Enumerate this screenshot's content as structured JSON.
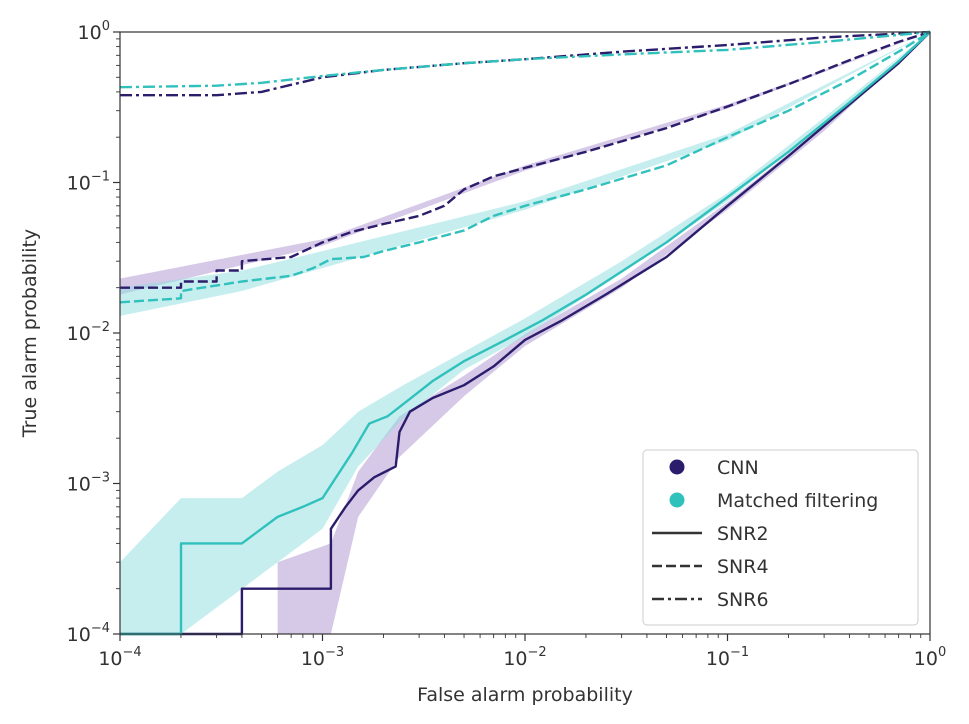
{
  "chart_data": {
    "type": "line",
    "xlabel": "False alarm probability",
    "ylabel": "True alarm probability",
    "xscale": "log",
    "yscale": "log",
    "xlim": [
      0.0001,
      1
    ],
    "ylim": [
      0.0001,
      1
    ],
    "xticks": [
      {
        "value": 0.0001,
        "base": "10",
        "exp": "−4"
      },
      {
        "value": 0.001,
        "base": "10",
        "exp": "−3"
      },
      {
        "value": 0.01,
        "base": "10",
        "exp": "−2"
      },
      {
        "value": 0.1,
        "base": "10",
        "exp": "−1"
      },
      {
        "value": 1,
        "base": "10",
        "exp": "0"
      }
    ],
    "yticks": [
      {
        "value": 0.0001,
        "base": "10",
        "exp": "−4"
      },
      {
        "value": 0.001,
        "base": "10",
        "exp": "−3"
      },
      {
        "value": 0.01,
        "base": "10",
        "exp": "−2"
      },
      {
        "value": 0.1,
        "base": "10",
        "exp": "−1"
      },
      {
        "value": 1,
        "base": "10",
        "exp": "0"
      }
    ],
    "grid": false,
    "legend": {
      "placement": "lower-right",
      "entries": [
        {
          "label": "CNN",
          "marker": "circle",
          "color": "#2b1d6b"
        },
        {
          "label": "Matched filtering",
          "marker": "circle",
          "color": "#31c1bd"
        },
        {
          "label": "SNR2",
          "dash": "solid",
          "color": "#333333"
        },
        {
          "label": "SNR4",
          "dash": "dashed",
          "color": "#333333"
        },
        {
          "label": "SNR6",
          "dash": "dashdot",
          "color": "#333333"
        }
      ]
    },
    "colors": {
      "CNN": "#2b1d6b",
      "Matched filtering": "#31c1bd",
      "CNN_band": "#b59cd6",
      "MF_band": "#8fdde0"
    },
    "series": [
      {
        "method": "CNN",
        "snr": "SNR2",
        "dash": "solid",
        "points": [
          [
            0.0001,
            0.0001
          ],
          [
            0.0004,
            0.0001
          ],
          [
            0.0004,
            0.0002
          ],
          [
            0.0011,
            0.0002
          ],
          [
            0.0011,
            0.0005
          ],
          [
            0.0013,
            0.0007
          ],
          [
            0.0015,
            0.0009
          ],
          [
            0.0018,
            0.0011
          ],
          [
            0.0023,
            0.0013
          ],
          [
            0.0024,
            0.0022
          ],
          [
            0.0027,
            0.003
          ],
          [
            0.0035,
            0.0037
          ],
          [
            0.005,
            0.0045
          ],
          [
            0.007,
            0.006
          ],
          [
            0.01,
            0.009
          ],
          [
            0.015,
            0.012
          ],
          [
            0.025,
            0.018
          ],
          [
            0.05,
            0.032
          ],
          [
            0.1,
            0.07
          ],
          [
            0.2,
            0.15
          ],
          [
            0.4,
            0.33
          ],
          [
            0.7,
            0.62
          ],
          [
            1,
            1
          ]
        ],
        "band": [
          [
            0.0001,
            0.0001,
            0.0001
          ],
          [
            0.0006,
            0.0001,
            0.0001
          ],
          [
            0.0006,
            0.0001,
            0.0003
          ],
          [
            0.0011,
            0.0001,
            0.0004
          ],
          [
            0.0015,
            0.0006,
            0.0012
          ],
          [
            0.0024,
            0.0015,
            0.0028
          ],
          [
            0.005,
            0.0038,
            0.0052
          ],
          [
            0.01,
            0.0082,
            0.0098
          ],
          [
            0.03,
            0.02,
            0.023
          ],
          [
            0.1,
            0.066,
            0.074
          ],
          [
            0.3,
            0.22,
            0.24
          ],
          [
            1,
            1,
            1
          ]
        ]
      },
      {
        "method": "Matched filtering",
        "snr": "SNR2",
        "dash": "solid",
        "points": [
          [
            0.0001,
            0.0001
          ],
          [
            0.0002,
            0.0001
          ],
          [
            0.0002,
            0.0004
          ],
          [
            0.0004,
            0.0004
          ],
          [
            0.0005,
            0.0005
          ],
          [
            0.0006,
            0.0006
          ],
          [
            0.0008,
            0.0007
          ],
          [
            0.001,
            0.0008
          ],
          [
            0.0014,
            0.0016
          ],
          [
            0.0017,
            0.0025
          ],
          [
            0.0021,
            0.0028
          ],
          [
            0.0026,
            0.0035
          ],
          [
            0.0035,
            0.0048
          ],
          [
            0.005,
            0.0065
          ],
          [
            0.008,
            0.009
          ],
          [
            0.012,
            0.012
          ],
          [
            0.02,
            0.018
          ],
          [
            0.05,
            0.04
          ],
          [
            0.1,
            0.08
          ],
          [
            0.2,
            0.16
          ],
          [
            0.4,
            0.34
          ],
          [
            0.7,
            0.64
          ],
          [
            1,
            1
          ]
        ],
        "band": [
          [
            0.0001,
            0.0001,
            0.0003
          ],
          [
            0.0002,
            0.0001,
            0.0008
          ],
          [
            0.0004,
            0.0002,
            0.0008
          ],
          [
            0.0006,
            0.0003,
            0.0012
          ],
          [
            0.001,
            0.0005,
            0.0018
          ],
          [
            0.0015,
            0.0013,
            0.003
          ],
          [
            0.0025,
            0.0027,
            0.0045
          ],
          [
            0.005,
            0.0057,
            0.0075
          ],
          [
            0.01,
            0.0095,
            0.0125
          ],
          [
            0.03,
            0.025,
            0.03
          ],
          [
            0.1,
            0.075,
            0.085
          ],
          [
            0.3,
            0.25,
            0.27
          ],
          [
            1,
            1,
            1
          ]
        ]
      },
      {
        "method": "CNN",
        "snr": "SNR4",
        "dash": "dashed",
        "points": [
          [
            0.0001,
            0.02
          ],
          [
            0.0002,
            0.02
          ],
          [
            0.0002,
            0.022
          ],
          [
            0.0003,
            0.022
          ],
          [
            0.0003,
            0.026
          ],
          [
            0.0004,
            0.026
          ],
          [
            0.0004,
            0.03
          ],
          [
            0.0007,
            0.032
          ],
          [
            0.001,
            0.04
          ],
          [
            0.0014,
            0.047
          ],
          [
            0.002,
            0.053
          ],
          [
            0.003,
            0.06
          ],
          [
            0.004,
            0.07
          ],
          [
            0.005,
            0.09
          ],
          [
            0.007,
            0.11
          ],
          [
            0.01,
            0.125
          ],
          [
            0.02,
            0.16
          ],
          [
            0.05,
            0.23
          ],
          [
            0.1,
            0.32
          ],
          [
            0.2,
            0.45
          ],
          [
            0.4,
            0.65
          ],
          [
            0.7,
            0.86
          ],
          [
            1,
            1
          ]
        ],
        "band": [
          [
            0.0001,
            0.018,
            0.023
          ],
          [
            0.001,
            0.038,
            0.042
          ],
          [
            0.01,
            0.12,
            0.13
          ],
          [
            0.1,
            0.31,
            0.33
          ],
          [
            1,
            1,
            1
          ]
        ]
      },
      {
        "method": "Matched filtering",
        "snr": "SNR4",
        "dash": "dashed",
        "points": [
          [
            0.0001,
            0.016
          ],
          [
            0.0002,
            0.017
          ],
          [
            0.0002,
            0.019
          ],
          [
            0.0004,
            0.022
          ],
          [
            0.0007,
            0.024
          ],
          [
            0.0009,
            0.027
          ],
          [
            0.0011,
            0.031
          ],
          [
            0.0016,
            0.032
          ],
          [
            0.002,
            0.035
          ],
          [
            0.003,
            0.04
          ],
          [
            0.005,
            0.048
          ],
          [
            0.007,
            0.06
          ],
          [
            0.01,
            0.07
          ],
          [
            0.02,
            0.09
          ],
          [
            0.05,
            0.13
          ],
          [
            0.1,
            0.2
          ],
          [
            0.2,
            0.3
          ],
          [
            0.4,
            0.48
          ],
          [
            0.7,
            0.74
          ],
          [
            1,
            1
          ]
        ],
        "band": [
          [
            0.0001,
            0.013,
            0.02
          ],
          [
            0.0004,
            0.019,
            0.026
          ],
          [
            0.001,
            0.027,
            0.035
          ],
          [
            0.01,
            0.066,
            0.075
          ],
          [
            0.1,
            0.19,
            0.21
          ],
          [
            1,
            1,
            1
          ]
        ]
      },
      {
        "method": "CNN",
        "snr": "SNR6",
        "dash": "dashdot",
        "points": [
          [
            0.0001,
            0.38
          ],
          [
            0.0003,
            0.38
          ],
          [
            0.0005,
            0.4
          ],
          [
            0.001,
            0.5
          ],
          [
            0.002,
            0.56
          ],
          [
            0.005,
            0.62
          ],
          [
            0.01,
            0.66
          ],
          [
            0.03,
            0.74
          ],
          [
            0.1,
            0.82
          ],
          [
            0.3,
            0.92
          ],
          [
            1,
            1
          ]
        ]
      },
      {
        "method": "Matched filtering",
        "snr": "SNR6",
        "dash": "dashdot",
        "points": [
          [
            0.0001,
            0.43
          ],
          [
            0.0003,
            0.44
          ],
          [
            0.0005,
            0.46
          ],
          [
            0.001,
            0.51
          ],
          [
            0.002,
            0.56
          ],
          [
            0.005,
            0.62
          ],
          [
            0.01,
            0.66
          ],
          [
            0.03,
            0.71
          ],
          [
            0.1,
            0.76
          ],
          [
            0.3,
            0.86
          ],
          [
            1,
            1
          ]
        ]
      }
    ]
  }
}
